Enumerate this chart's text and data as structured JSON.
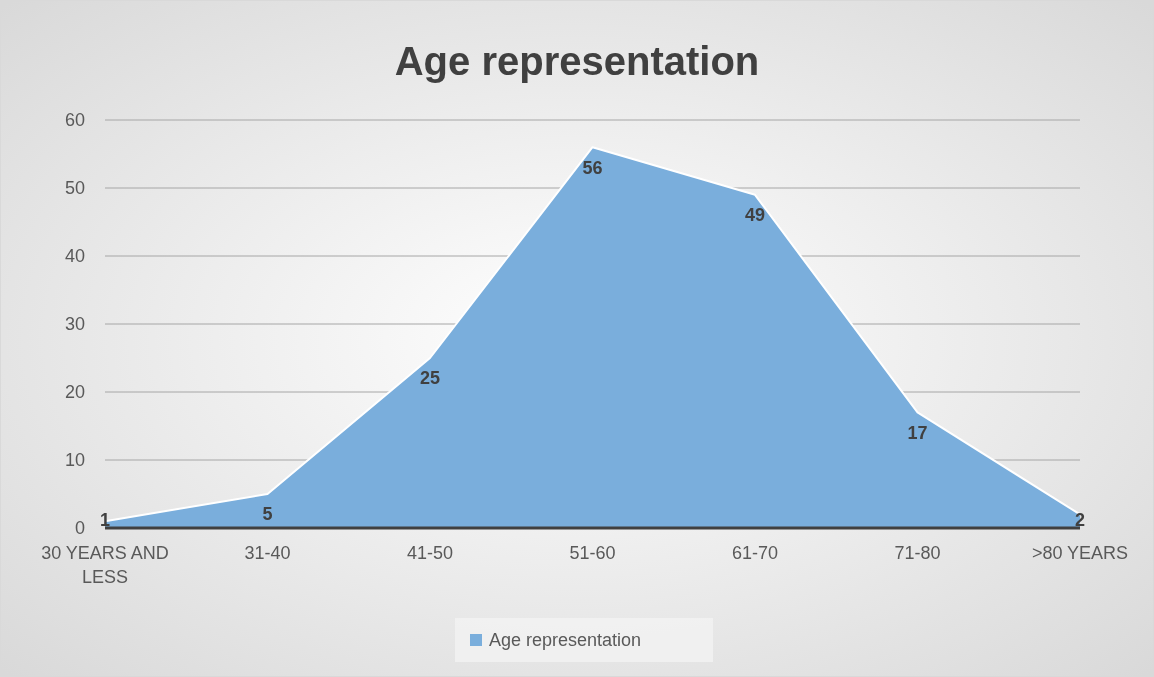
{
  "chart_data": {
    "type": "area",
    "title": "Age representation",
    "categories": [
      "30 YEARS AND LESS",
      "31-40",
      "41-50",
      "51-60",
      "61-70",
      "71-80",
      ">80 YEARS"
    ],
    "series": [
      {
        "name": "Age representation",
        "color": "#7aaedc",
        "values": [
          1,
          5,
          25,
          56,
          49,
          17,
          2
        ]
      }
    ],
    "ylim": [
      0,
      60
    ],
    "yticks": [
      0,
      10,
      20,
      30,
      40,
      50,
      60
    ],
    "grid": "y",
    "legend": "bottom",
    "data_labels": true
  }
}
